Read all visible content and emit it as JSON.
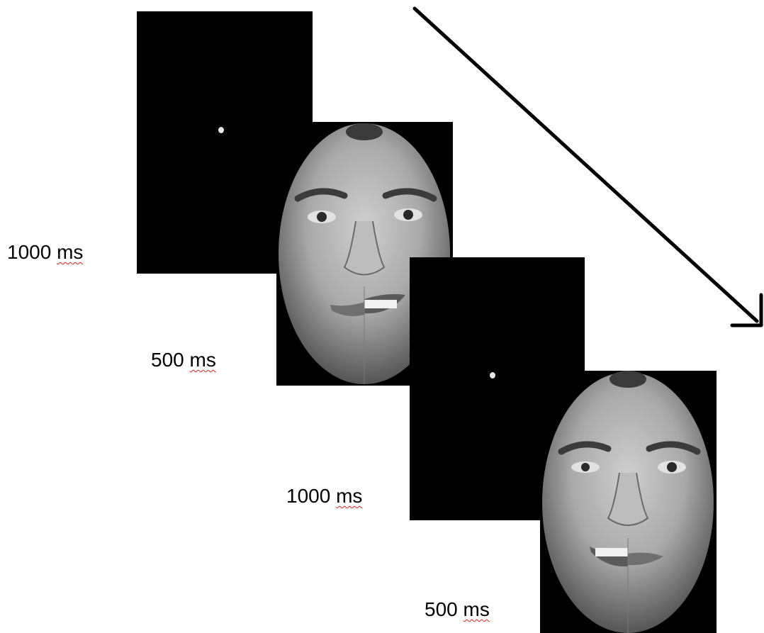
{
  "labels": {
    "first_fixation": {
      "value": "1000",
      "unit": "ms"
    },
    "first_face": {
      "value": "500",
      "unit": "ms"
    },
    "second_fixation": {
      "value": "1000",
      "unit": "ms"
    },
    "second_face": {
      "value": "500",
      "unit": "ms"
    }
  },
  "colors": {
    "panel_background": "#000000",
    "fixation_dot": "#e6e6e6",
    "arrow": "#000000",
    "spellcheck_underline": "#e02020"
  },
  "icons": {
    "fixation": "fixation-dot",
    "stimulus": "face-photo",
    "timeline": "time-arrow"
  }
}
